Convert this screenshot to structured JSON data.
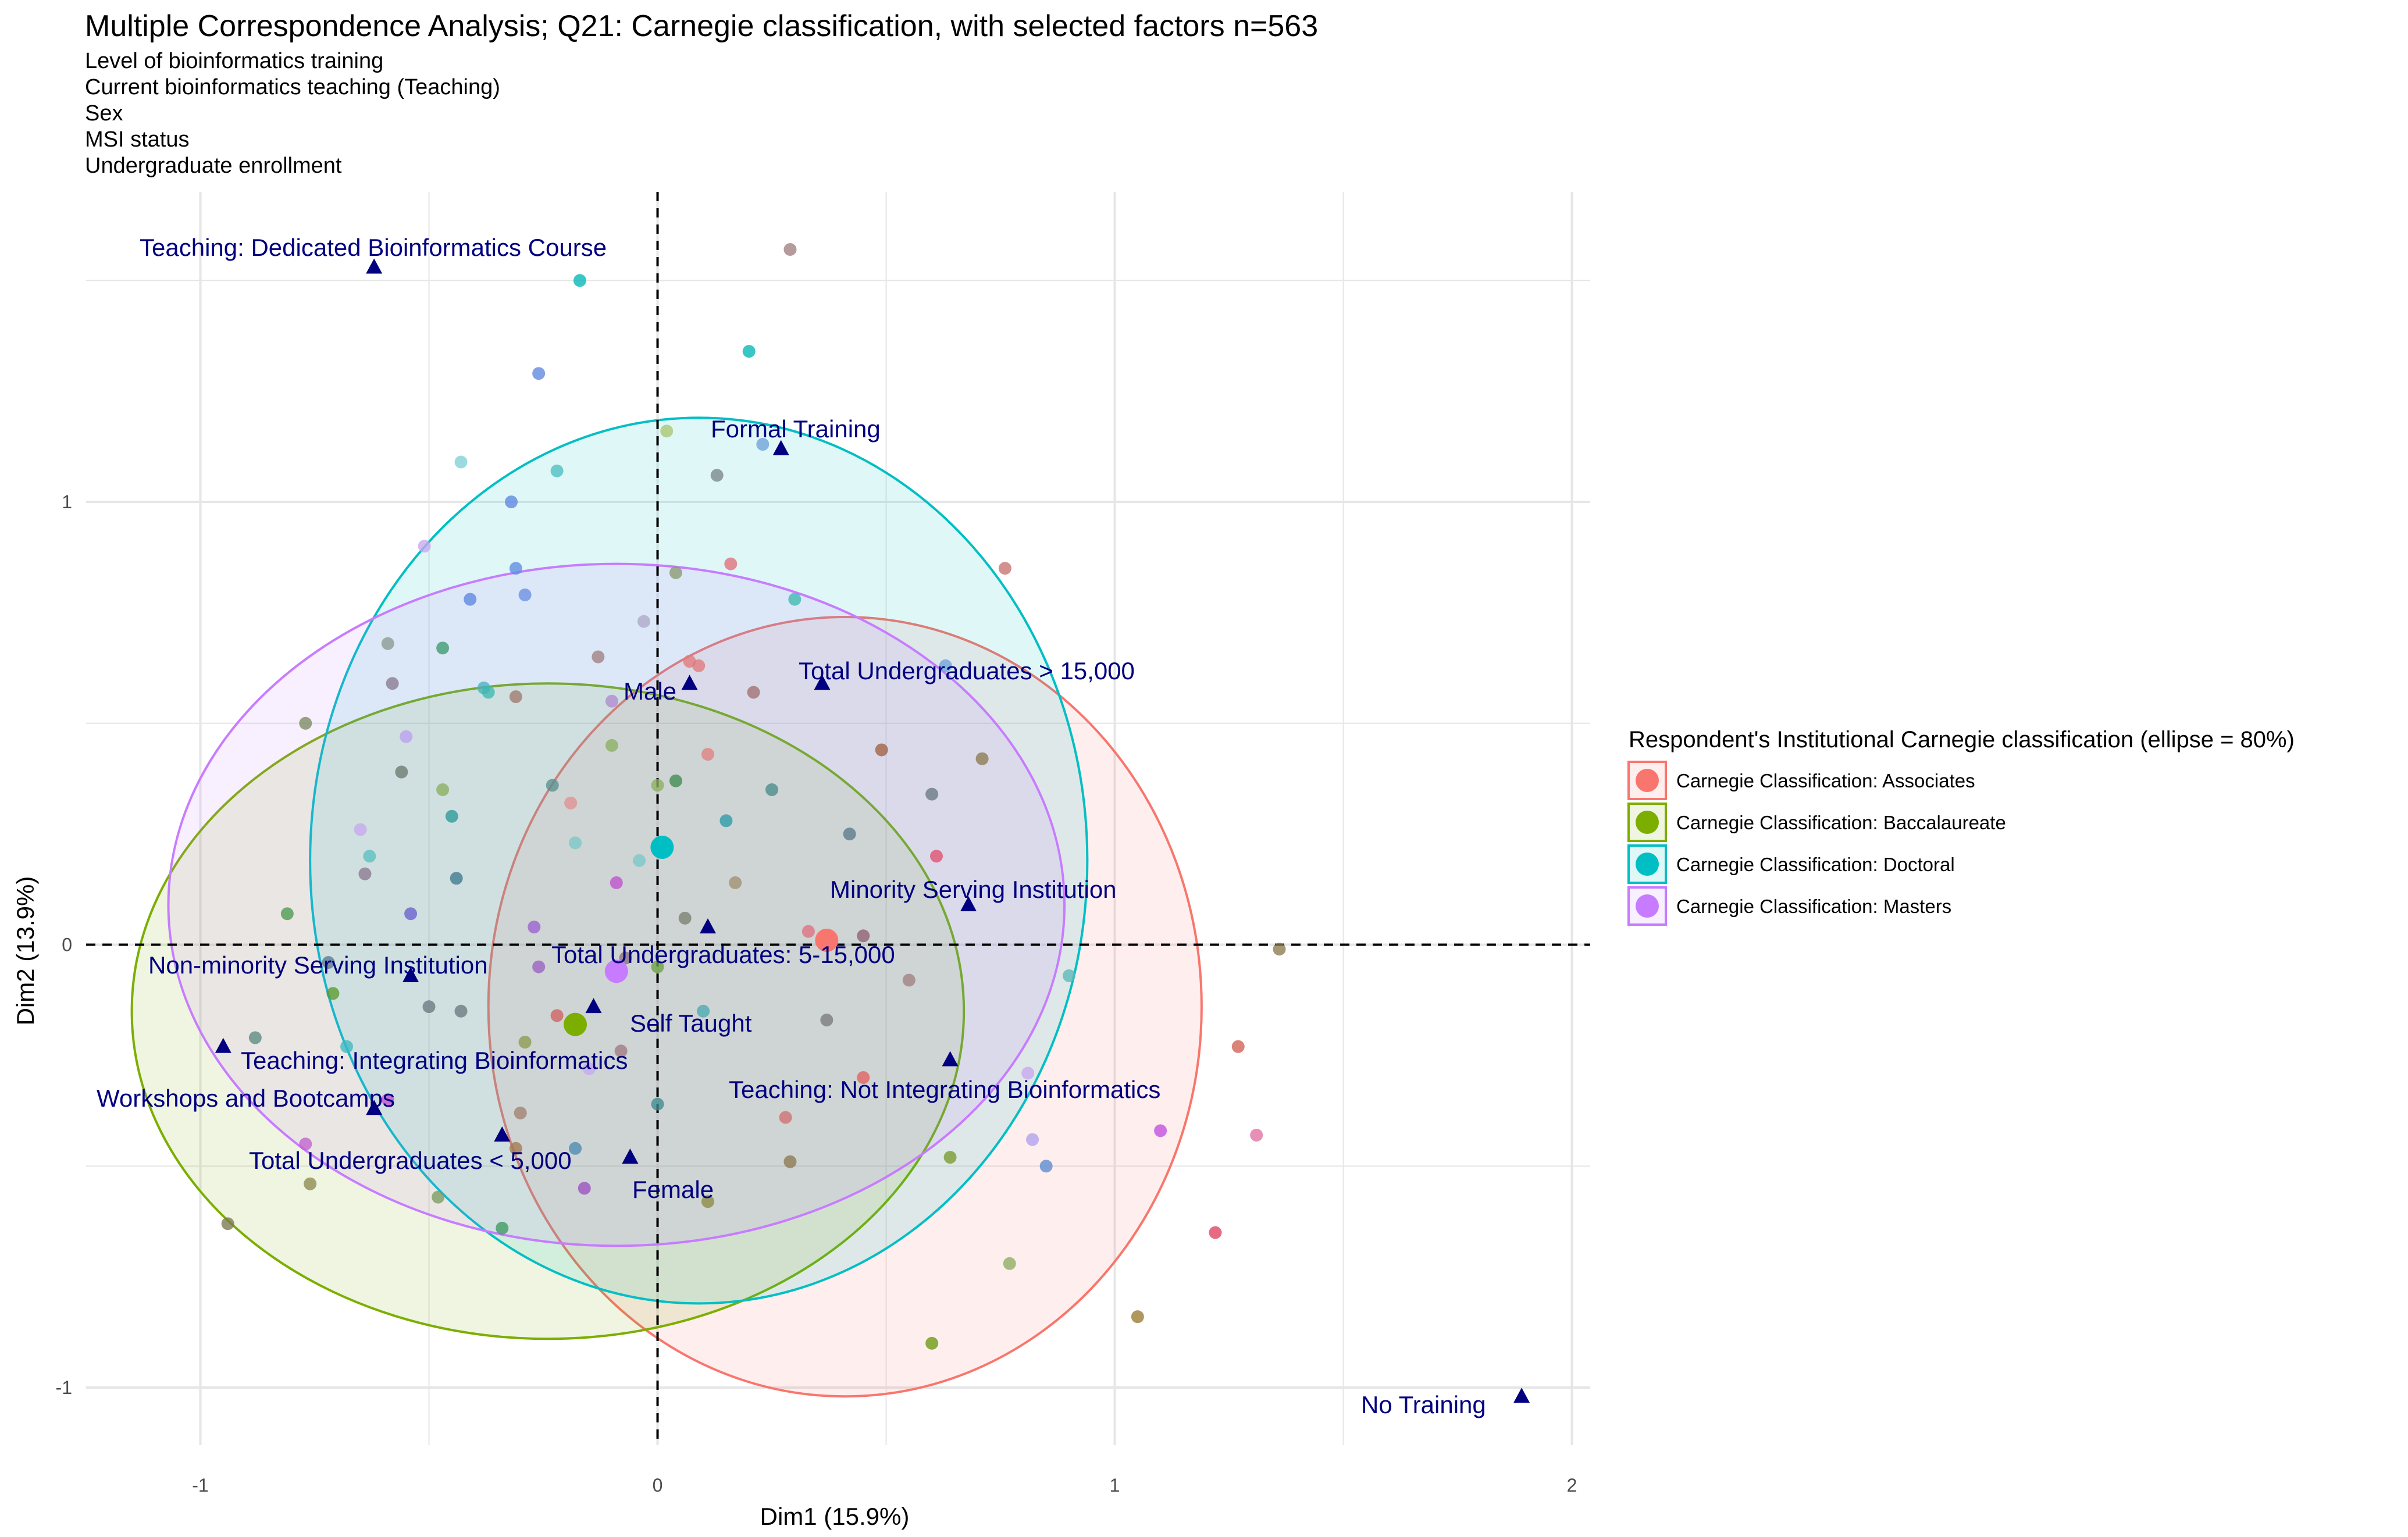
{
  "title": "Multiple Correspondence Analysis; Q21: Carnegie classification, with selected factors n=563",
  "subtitle_lines": [
    "Level of bioinformatics training",
    "Current bioinformatics teaching (Teaching)",
    "Sex",
    "MSI status",
    "Undergraduate enrollment"
  ],
  "chart_data": {
    "type": "scatter",
    "title": "Multiple Correspondence Analysis; Q21: Carnegie classification, with selected factors n=563",
    "xlabel": "Dim1 (15.9%)",
    "ylabel": "Dim2 (13.9%)",
    "xlim": [
      -1.25,
      2.04
    ],
    "ylim": [
      -1.13,
      1.7
    ],
    "x_ticks": [
      -1,
      0,
      1,
      2
    ],
    "y_ticks": [
      -1,
      0,
      1
    ],
    "grid": true,
    "reference_lines": [
      {
        "axis": "x",
        "value": 0,
        "style": "dashed"
      },
      {
        "axis": "y",
        "value": 0,
        "style": "dashed"
      }
    ],
    "legend": {
      "title": "Respondent's Institutional Carnegie classification (ellipse = 80%)",
      "placement": "right"
    },
    "groups": [
      {
        "name": "Carnegie Classification: Associates",
        "color": "#F8766D",
        "centroid": [
          0.37,
          0.01
        ],
        "ellipse": {
          "cx": 0.41,
          "cy": -0.14,
          "rx": 0.78,
          "ry": 0.88
        }
      },
      {
        "name": "Carnegie Classification: Baccalaureate",
        "color": "#7CAE00",
        "centroid": [
          -0.18,
          -0.18
        ],
        "ellipse": {
          "cx": -0.24,
          "cy": -0.15,
          "rx": 0.91,
          "ry": 0.74
        }
      },
      {
        "name": "Carnegie Classification: Doctoral",
        "color": "#00BFC4",
        "centroid": [
          0.01,
          0.22
        ],
        "ellipse": {
          "cx": 0.09,
          "cy": 0.19,
          "rx": 0.85,
          "ry": 1.0
        }
      },
      {
        "name": "Carnegie Classification: Masters",
        "color": "#C77CFF",
        "centroid": [
          -0.09,
          -0.06
        ],
        "ellipse": {
          "cx": -0.09,
          "cy": 0.09,
          "rx": 0.98,
          "ry": 0.77
        }
      }
    ],
    "variable_categories": [
      {
        "label": "Teaching: Dedicated Bioinformatics Course",
        "x": -0.62,
        "y": 1.53
      },
      {
        "label": "Formal Training",
        "x": 0.27,
        "y": 1.12
      },
      {
        "label": "Male",
        "x": 0.07,
        "y": 0.59
      },
      {
        "label": "Total Undergraduates > 15,000",
        "x": 0.36,
        "y": 0.59
      },
      {
        "label": "Minority Serving Institution",
        "x": 0.68,
        "y": 0.09
      },
      {
        "label": "Total Undergraduates: 5-15,000",
        "x": 0.11,
        "y": 0.04
      },
      {
        "label": "Non-minority Serving Institution",
        "x": -0.54,
        "y": -0.07
      },
      {
        "label": "Self Taught",
        "x": -0.14,
        "y": -0.14
      },
      {
        "label": "Teaching: Integrating Bioinformatics",
        "x": -0.95,
        "y": -0.23
      },
      {
        "label": "Teaching: Not Integrating Bioinformatics",
        "x": 0.64,
        "y": -0.26
      },
      {
        "label": "Workshops and Bootcamps",
        "x": -0.62,
        "y": -0.37
      },
      {
        "label": "Total Undergraduates < 5,000",
        "x": -0.34,
        "y": -0.43
      },
      {
        "label": "Female",
        "x": -0.06,
        "y": -0.48
      },
      {
        "label": "No Training",
        "x": 1.89,
        "y": -1.02
      }
    ],
    "points": [
      [
        0.29,
        1.57,
        "#A08080"
      ],
      [
        -0.17,
        1.5,
        "#00B7B5"
      ],
      [
        0.2,
        1.34,
        "#00B7B5"
      ],
      [
        -0.26,
        1.29,
        "#5F87E0"
      ],
      [
        -0.43,
        1.09,
        "#7FD0D8"
      ],
      [
        0.23,
        1.13,
        "#6EA3D8"
      ],
      [
        0.02,
        1.16,
        "#A8C870"
      ],
      [
        -0.22,
        1.07,
        "#4BC0C0"
      ],
      [
        0.13,
        1.06,
        "#7A8888"
      ],
      [
        -0.32,
        1.0,
        "#5F87E0"
      ],
      [
        -0.51,
        0.9,
        "#C8A8F0"
      ],
      [
        -0.31,
        0.85,
        "#5F8DE0"
      ],
      [
        0.16,
        0.86,
        "#E0707A"
      ],
      [
        0.04,
        0.84,
        "#8A9A70"
      ],
      [
        0.76,
        0.85,
        "#C87070"
      ],
      [
        -0.41,
        0.78,
        "#5F87E0"
      ],
      [
        -0.29,
        0.79,
        "#6B8FE0"
      ],
      [
        0.3,
        0.78,
        "#3DB8B0"
      ],
      [
        -0.59,
        0.68,
        "#8A9A90"
      ],
      [
        -0.47,
        0.67,
        "#3D9A70"
      ],
      [
        -0.13,
        0.65,
        "#A08080"
      ],
      [
        0.07,
        0.64,
        "#E07A7A"
      ],
      [
        0.09,
        0.63,
        "#E07A7A"
      ],
      [
        -0.03,
        0.73,
        "#B0A8C8"
      ],
      [
        -0.58,
        0.59,
        "#8A7A90"
      ],
      [
        -0.38,
        0.58,
        "#4BB0C0"
      ],
      [
        -0.37,
        0.57,
        "#3DB8B0"
      ],
      [
        -0.31,
        0.56,
        "#A07A70"
      ],
      [
        -0.1,
        0.55,
        "#B08AD0"
      ],
      [
        0.21,
        0.57,
        "#A07070"
      ],
      [
        0.63,
        0.63,
        "#6EA3D8"
      ],
      [
        -0.77,
        0.5,
        "#7A8A60"
      ],
      [
        -0.55,
        0.47,
        "#B8A0F0"
      ],
      [
        -0.1,
        0.45,
        "#8AB060"
      ],
      [
        0.11,
        0.43,
        "#E08080"
      ],
      [
        0.49,
        0.44,
        "#A06040"
      ],
      [
        0.71,
        0.42,
        "#8A7A50"
      ],
      [
        -0.56,
        0.39,
        "#6A7A70"
      ],
      [
        -0.47,
        0.35,
        "#8AB060"
      ],
      [
        -0.23,
        0.36,
        "#5A9090"
      ],
      [
        0.0,
        0.36,
        "#8AB060"
      ],
      [
        0.04,
        0.37,
        "#3D8A50"
      ],
      [
        0.25,
        0.35,
        "#4A8A8A"
      ],
      [
        0.6,
        0.34,
        "#6A7A80"
      ],
      [
        -0.19,
        0.32,
        "#E09090"
      ],
      [
        -0.45,
        0.29,
        "#2A9A9A"
      ],
      [
        -0.18,
        0.23,
        "#7AC8C8"
      ],
      [
        0.15,
        0.28,
        "#2A9AA8"
      ],
      [
        0.42,
        0.25,
        "#5A7A8A"
      ],
      [
        -0.65,
        0.26,
        "#C8A8F0"
      ],
      [
        -0.63,
        0.2,
        "#5AC0C0"
      ],
      [
        -0.04,
        0.19,
        "#7AC8C8"
      ],
      [
        -0.64,
        0.16,
        "#8A7A90"
      ],
      [
        -0.44,
        0.15,
        "#3D7A90"
      ],
      [
        -0.09,
        0.14,
        "#C050D0"
      ],
      [
        0.17,
        0.14,
        "#A09070"
      ],
      [
        0.61,
        0.2,
        "#E05070"
      ],
      [
        -0.54,
        0.07,
        "#6A60D0"
      ],
      [
        -0.81,
        0.07,
        "#4A9A50"
      ],
      [
        -0.27,
        0.04,
        "#9A60D0"
      ],
      [
        0.06,
        0.06,
        "#7A8070"
      ],
      [
        0.33,
        0.03,
        "#E07080"
      ],
      [
        0.45,
        0.02,
        "#906070"
      ],
      [
        1.36,
        -0.01,
        "#8A7A50"
      ],
      [
        0.9,
        -0.07,
        "#5AB8B8"
      ],
      [
        0.55,
        -0.08,
        "#A08080"
      ],
      [
        -0.72,
        -0.04,
        "#5A7A90"
      ],
      [
        -0.26,
        -0.05,
        "#9A60C0"
      ],
      [
        -0.07,
        -0.03,
        "#8A7080"
      ],
      [
        0.0,
        -0.05,
        "#6AA040"
      ],
      [
        -0.71,
        -0.11,
        "#5A9A30"
      ],
      [
        -0.5,
        -0.14,
        "#6A7A80"
      ],
      [
        -0.43,
        -0.15,
        "#6A7A80"
      ],
      [
        -0.22,
        -0.16,
        "#D06060"
      ],
      [
        0.1,
        -0.15,
        "#4AA8B0"
      ],
      [
        0.37,
        -0.17,
        "#7A7A7A"
      ],
      [
        -0.88,
        -0.21,
        "#5A8A80"
      ],
      [
        -0.68,
        -0.23,
        "#3DB8C0"
      ],
      [
        -0.29,
        -0.22,
        "#8A9A50"
      ],
      [
        -0.08,
        -0.24,
        "#A07A80"
      ],
      [
        -0.15,
        -0.28,
        "#C8A8F0"
      ],
      [
        0.45,
        -0.3,
        "#E06060"
      ],
      [
        0.81,
        -0.29,
        "#C8A8F0"
      ],
      [
        1.27,
        -0.23,
        "#D06050"
      ],
      [
        -0.59,
        -0.35,
        "#C050D0"
      ],
      [
        -0.3,
        -0.38,
        "#A08070"
      ],
      [
        0.0,
        -0.36,
        "#3D8A90"
      ],
      [
        0.28,
        -0.39,
        "#D07070"
      ],
      [
        1.1,
        -0.42,
        "#C050E0"
      ],
      [
        1.31,
        -0.43,
        "#E070A0"
      ],
      [
        -0.77,
        -0.45,
        "#C060D0"
      ],
      [
        -0.31,
        -0.46,
        "#A07A50"
      ],
      [
        -0.18,
        -0.46,
        "#4A8AB0"
      ],
      [
        0.29,
        -0.49,
        "#8A7A50"
      ],
      [
        0.64,
        -0.48,
        "#7A9A30"
      ],
      [
        0.85,
        -0.5,
        "#5A8AD0"
      ],
      [
        -0.76,
        -0.54,
        "#8A8A50"
      ],
      [
        -0.48,
        -0.57,
        "#7A9A60"
      ],
      [
        -0.16,
        -0.55,
        "#9A50C0"
      ],
      [
        0.11,
        -0.58,
        "#8A8A40"
      ],
      [
        -0.94,
        -0.63,
        "#7A7A50"
      ],
      [
        -0.34,
        -0.64,
        "#3D9A60"
      ],
      [
        1.22,
        -0.65,
        "#E04060"
      ],
      [
        0.77,
        -0.72,
        "#8AB060"
      ],
      [
        1.05,
        -0.84,
        "#9A7A30"
      ],
      [
        0.6,
        -0.9,
        "#6A9A10"
      ],
      [
        0.82,
        -0.44,
        "#B0A0F0"
      ]
    ]
  }
}
